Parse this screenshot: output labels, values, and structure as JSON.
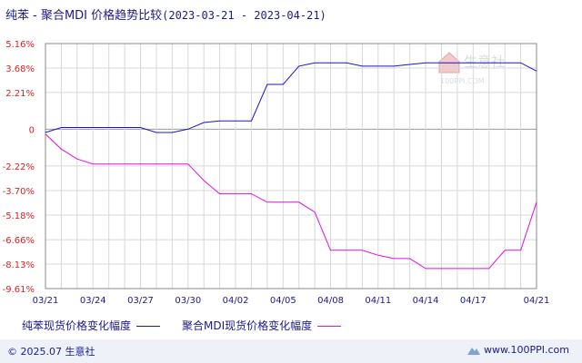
{
  "header": {
    "title": "纯苯 - 聚合MDI 价格趋势比较",
    "date_range": "(2023-03-21 - 2023-04-21)"
  },
  "watermark": {
    "name": "生意社",
    "url": "100PPI.COM"
  },
  "footer": {
    "copyright": "© 2025.07 生意社",
    "site": "www.100PPI.com"
  },
  "colors": {
    "series1": "#1818c0",
    "series2": "#e010e0",
    "axis": "#888888",
    "grid": "#d8d8d8",
    "text": "#1a1a8c"
  },
  "chart_data": {
    "type": "line",
    "ylim": [
      -9.61,
      5.16
    ],
    "yticks": [
      5.16,
      3.68,
      2.21,
      0,
      -2.22,
      -3.7,
      -5.18,
      -6.66,
      -8.13,
      -9.61
    ],
    "ytick_labels": [
      "5.16%",
      "3.68%",
      "2.21%",
      "0",
      "-2.22%",
      "-3.70%",
      "-5.18%",
      "-6.66%",
      "-8.13%",
      "-9.61%"
    ],
    "x_dates": [
      "03/21",
      "03/22",
      "03/23",
      "03/24",
      "03/25",
      "03/26",
      "03/27",
      "03/28",
      "03/29",
      "03/30",
      "03/31",
      "04/01",
      "04/02",
      "04/03",
      "04/04",
      "04/05",
      "04/06",
      "04/07",
      "04/08",
      "04/09",
      "04/10",
      "04/11",
      "04/12",
      "04/13",
      "04/14",
      "04/15",
      "04/16",
      "04/17",
      "04/18",
      "04/19",
      "04/20",
      "04/21"
    ],
    "x_tick_labels": [
      "03/21",
      "03/24",
      "03/27",
      "03/30",
      "04/02",
      "04/05",
      "04/08",
      "04/11",
      "04/14",
      "04/17",
      "04/21"
    ],
    "series": [
      {
        "name": "纯苯现货价格变化幅度",
        "values": [
          -0.2,
          0.1,
          0.1,
          0.1,
          0.1,
          0.1,
          0.1,
          -0.2,
          -0.2,
          0.0,
          0.4,
          0.5,
          0.5,
          0.5,
          2.7,
          2.7,
          3.8,
          4.0,
          4.0,
          4.0,
          3.8,
          3.8,
          3.8,
          3.9,
          4.0,
          4.0,
          4.0,
          4.0,
          4.0,
          4.0,
          4.0,
          3.5
        ]
      },
      {
        "name": "聚合MDI现货价格变化幅度",
        "values": [
          -0.3,
          -1.2,
          -1.8,
          -2.1,
          -2.1,
          -2.1,
          -2.1,
          -2.1,
          -2.1,
          -2.1,
          -3.1,
          -3.9,
          -3.9,
          -3.9,
          -4.4,
          -4.4,
          -4.4,
          -5.0,
          -7.3,
          -7.3,
          -7.3,
          -7.6,
          -7.8,
          -7.8,
          -8.4,
          -8.4,
          -8.4,
          -8.4,
          -8.4,
          -7.3,
          -7.3,
          -4.4
        ]
      }
    ]
  }
}
